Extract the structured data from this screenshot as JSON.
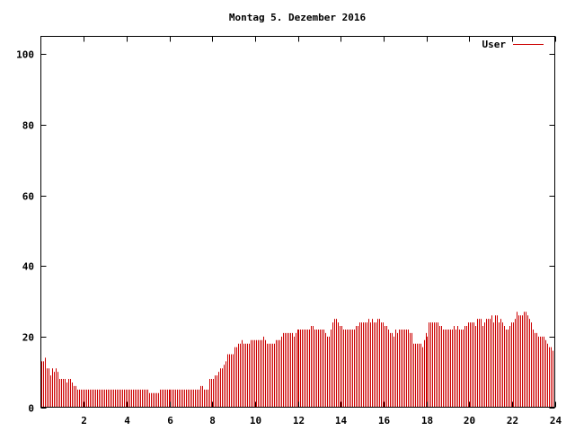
{
  "chart_data": {
    "type": "bar",
    "title": "Montag 5. Dezember 2016",
    "xlabel": "",
    "ylabel": "",
    "xlim": [
      0,
      24
    ],
    "ylim": [
      0,
      105
    ],
    "x_ticks": [
      2,
      4,
      6,
      8,
      10,
      12,
      14,
      16,
      18,
      20,
      22,
      24
    ],
    "y_ticks": [
      0,
      20,
      40,
      60,
      80,
      100
    ],
    "grid": false,
    "legend_position": "top-right",
    "bar_color": "#cc0000",
    "samples_per_hour": 12,
    "series": [
      {
        "name": "User",
        "values": [
          13,
          13,
          14,
          11,
          11,
          9,
          11,
          10,
          11,
          10,
          8,
          8,
          8,
          8,
          7,
          8,
          8,
          7,
          6,
          6,
          5,
          5,
          5,
          5,
          5,
          5,
          5,
          5,
          5,
          5,
          5,
          5,
          5,
          5,
          5,
          5,
          5,
          5,
          5,
          5,
          5,
          5,
          5,
          5,
          5,
          5,
          5,
          5,
          5,
          5,
          5,
          5,
          5,
          5,
          5,
          5,
          5,
          5,
          5,
          5,
          4,
          4,
          4,
          4,
          4,
          4,
          5,
          5,
          5,
          5,
          5,
          5,
          5,
          5,
          5,
          5,
          5,
          5,
          5,
          5,
          5,
          5,
          5,
          5,
          5,
          5,
          5,
          5,
          5,
          6,
          6,
          5,
          5,
          5,
          8,
          8,
          8,
          9,
          9,
          10,
          11,
          11,
          12,
          13,
          15,
          15,
          15,
          15,
          17,
          17,
          18,
          18,
          19,
          18,
          18,
          18,
          18,
          19,
          19,
          19,
          19,
          19,
          19,
          19,
          20,
          19,
          18,
          18,
          18,
          18,
          18,
          19,
          19,
          19,
          20,
          21,
          21,
          21,
          21,
          21,
          21,
          20,
          21,
          22,
          22,
          22,
          22,
          22,
          22,
          22,
          22,
          23,
          23,
          22,
          22,
          22,
          22,
          22,
          22,
          21,
          20,
          20,
          22,
          24,
          25,
          25,
          24,
          23,
          23,
          22,
          22,
          22,
          22,
          22,
          22,
          22,
          23,
          23,
          24,
          24,
          24,
          24,
          24,
          25,
          24,
          25,
          24,
          24,
          25,
          25,
          24,
          24,
          23,
          23,
          22,
          21,
          21,
          20,
          22,
          21,
          22,
          22,
          22,
          22,
          22,
          22,
          21,
          21,
          18,
          18,
          18,
          18,
          18,
          17,
          19,
          21,
          20,
          24,
          24,
          24,
          24,
          24,
          24,
          23,
          23,
          22,
          22,
          22,
          22,
          22,
          22,
          23,
          22,
          23,
          22,
          22,
          22,
          23,
          23,
          24,
          24,
          24,
          24,
          23,
          25,
          25,
          25,
          23,
          24,
          25,
          25,
          25,
          26,
          24,
          26,
          26,
          24,
          25,
          24,
          23,
          22,
          22,
          23,
          24,
          24,
          25,
          27,
          26,
          26,
          26,
          27,
          27,
          26,
          25,
          24,
          22,
          21,
          21,
          20,
          20,
          20,
          20,
          19,
          18,
          17,
          17,
          16,
          16
        ]
      }
    ]
  }
}
